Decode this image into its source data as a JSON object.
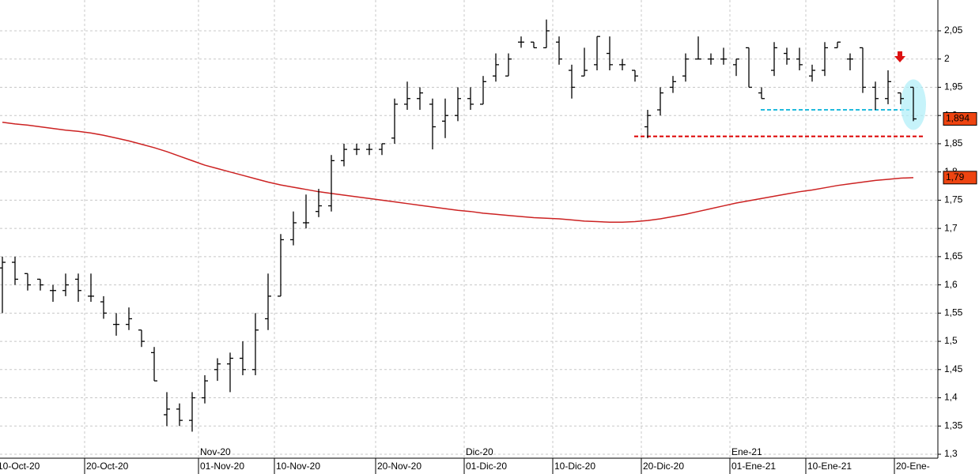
{
  "chart_data": {
    "type": "ohlc",
    "categories": [
      "10-Oct-20",
      null,
      null,
      null,
      null,
      null,
      null,
      "20-Oct-20",
      null,
      null,
      null,
      null,
      null,
      null,
      null,
      null,
      "01-Nov-20",
      null,
      null,
      null,
      null,
      null,
      "10-Nov-20",
      null,
      null,
      null,
      null,
      null,
      null,
      null,
      "20-Nov-20",
      null,
      null,
      null,
      null,
      null,
      null,
      "01-Dic-20",
      null,
      null,
      null,
      null,
      null,
      null,
      "10-Dic-20",
      null,
      null,
      null,
      null,
      null,
      null,
      "20-Dic-20",
      null,
      null,
      null,
      null,
      null,
      null,
      "01-Ene-21",
      null,
      null,
      null,
      null,
      null,
      "10-Ene-21",
      null,
      null,
      null,
      null,
      null,
      null,
      "20-Ene-",
      null
    ],
    "categories_top": [
      null,
      null,
      null,
      null,
      null,
      null,
      null,
      null,
      null,
      null,
      null,
      null,
      null,
      null,
      null,
      null,
      "Nov-20",
      null,
      null,
      null,
      null,
      null,
      null,
      null,
      null,
      null,
      null,
      null,
      null,
      null,
      null,
      null,
      null,
      null,
      null,
      null,
      null,
      "Dic-20",
      null,
      null,
      null,
      null,
      null,
      null,
      null,
      null,
      null,
      null,
      null,
      null,
      null,
      null,
      null,
      null,
      null,
      null,
      null,
      null,
      "Ene-21",
      null,
      null,
      null,
      null,
      null,
      null,
      null,
      null,
      null,
      null,
      null,
      null,
      null,
      null
    ],
    "ohlc": {
      "color": "#000000",
      "open": [
        1.63,
        1.64,
        1.62,
        1.61,
        1.59,
        1.59,
        1.61,
        1.58,
        1.57,
        1.53,
        1.53,
        1.52,
        1.48,
        1.37,
        1.38,
        1.36,
        1.4,
        1.45,
        1.46,
        1.47,
        1.45,
        1.54,
        1.58,
        1.68,
        1.71,
        1.73,
        1.74,
        1.82,
        1.84,
        1.84,
        1.84,
        1.86,
        1.92,
        1.93,
        1.92,
        1.89,
        1.9,
        1.93,
        1.92,
        1.97,
        1.97,
        2.03,
        2.03,
        2.02,
        2.03,
        1.98,
        1.97,
        1.99,
        2.01,
        1.99,
        1.98,
        1.88,
        1.91,
        1.95,
        1.97,
        2.0,
        2.0,
        2.0,
        1.99,
        2.02,
        1.94,
        1.98,
        2.01,
        2.0,
        1.97,
        1.98,
        2.02,
        2.0,
        2.02,
        1.95,
        1.93,
        1.94,
        1.95
      ],
      "high": [
        1.65,
        1.65,
        1.62,
        1.61,
        1.6,
        1.62,
        1.62,
        1.62,
        1.58,
        1.55,
        1.56,
        1.52,
        1.49,
        1.41,
        1.39,
        1.41,
        1.44,
        1.47,
        1.48,
        1.5,
        1.55,
        1.62,
        1.69,
        1.73,
        1.76,
        1.77,
        1.83,
        1.85,
        1.85,
        1.85,
        1.85,
        1.93,
        1.96,
        1.95,
        1.93,
        1.93,
        1.95,
        1.95,
        1.97,
        2.01,
        2.01,
        2.04,
        2.03,
        2.07,
        2.04,
        1.99,
        2.02,
        2.04,
        2.04,
        2.0,
        1.98,
        1.91,
        1.95,
        1.97,
        2.01,
        2.04,
        2.01,
        2.02,
        2.0,
        2.02,
        1.95,
        2.03,
        2.02,
        2.02,
        1.99,
        2.03,
        2.03,
        2.01,
        2.02,
        1.96,
        1.98,
        1.94,
        1.95
      ],
      "low": [
        1.55,
        1.6,
        1.59,
        1.59,
        1.57,
        1.58,
        1.57,
        1.57,
        1.54,
        1.51,
        1.52,
        1.49,
        1.43,
        1.35,
        1.35,
        1.34,
        1.39,
        1.43,
        1.41,
        1.44,
        1.44,
        1.52,
        1.58,
        1.67,
        1.7,
        1.72,
        1.73,
        1.81,
        1.83,
        1.83,
        1.83,
        1.85,
        1.91,
        1.91,
        1.84,
        1.86,
        1.89,
        1.91,
        1.92,
        1.96,
        1.97,
        2.02,
        2.02,
        2.02,
        1.99,
        1.93,
        1.97,
        1.98,
        1.98,
        1.98,
        1.96,
        1.86,
        1.9,
        1.94,
        1.96,
        2.0,
        1.99,
        1.99,
        1.97,
        1.95,
        1.93,
        1.97,
        1.99,
        1.98,
        1.96,
        1.97,
        2.02,
        1.98,
        1.94,
        1.91,
        1.92,
        1.92,
        1.89
      ],
      "close": [
        1.64,
        1.61,
        1.6,
        1.6,
        1.59,
        1.6,
        1.59,
        1.58,
        1.55,
        1.53,
        1.54,
        1.5,
        1.43,
        1.38,
        1.36,
        1.4,
        1.43,
        1.46,
        1.47,
        1.45,
        1.52,
        1.58,
        1.68,
        1.71,
        1.71,
        1.74,
        1.82,
        1.84,
        1.84,
        1.84,
        1.85,
        1.92,
        1.93,
        1.94,
        1.88,
        1.9,
        1.93,
        1.92,
        1.96,
        1.99,
        2.0,
        2.03,
        2.02,
        2.05,
        2.0,
        1.95,
        1.98,
        2.04,
        1.99,
        1.99,
        1.97,
        1.9,
        1.94,
        1.96,
        2.0,
        2.0,
        2.0,
        2.0,
        2.0,
        1.95,
        1.93,
        2.02,
        2.0,
        1.99,
        1.98,
        2.02,
        2.03,
        2.0,
        1.95,
        1.93,
        1.96,
        1.93,
        1.894
      ]
    },
    "moving_average": {
      "color": "#cc2222",
      "values": [
        1.888,
        1.885,
        1.883,
        1.88,
        1.877,
        1.874,
        1.872,
        1.869,
        1.865,
        1.86,
        1.855,
        1.849,
        1.843,
        1.836,
        1.828,
        1.82,
        1.812,
        1.806,
        1.8,
        1.794,
        1.788,
        1.782,
        1.777,
        1.773,
        1.769,
        1.765,
        1.762,
        1.759,
        1.756,
        1.753,
        1.75,
        1.747,
        1.744,
        1.741,
        1.738,
        1.735,
        1.732,
        1.73,
        1.727,
        1.725,
        1.723,
        1.721,
        1.719,
        1.718,
        1.717,
        1.715,
        1.713,
        1.712,
        1.711,
        1.711,
        1.712,
        1.714,
        1.717,
        1.721,
        1.725,
        1.73,
        1.735,
        1.74,
        1.745,
        1.749,
        1.753,
        1.757,
        1.761,
        1.765,
        1.768,
        1.772,
        1.776,
        1.779,
        1.782,
        1.785,
        1.787,
        1.789,
        1.79
      ]
    },
    "levels": [
      {
        "value": 1.863,
        "color": "#dd0000"
      },
      {
        "value": 1.91,
        "color": "#22bbdd"
      }
    ],
    "price_labels": [
      {
        "value": 1.894,
        "label": "1,894",
        "color": "#ee4411"
      },
      {
        "value": 1.79,
        "label": "1,79",
        "color": "#ee4411"
      }
    ],
    "ylim": [
      1.3,
      2.05
    ],
    "yticks": [
      {
        "value": 1.3,
        "label": "1,3"
      },
      {
        "value": 1.35,
        "label": "1,35"
      },
      {
        "value": 1.4,
        "label": "1,4"
      },
      {
        "value": 1.45,
        "label": "1,45"
      },
      {
        "value": 1.5,
        "label": "1,5"
      },
      {
        "value": 1.55,
        "label": "1,55"
      },
      {
        "value": 1.6,
        "label": "1,6"
      },
      {
        "value": 1.65,
        "label": "1,65"
      },
      {
        "value": 1.7,
        "label": "1,7"
      },
      {
        "value": 1.75,
        "label": "1,75"
      },
      {
        "value": 1.8,
        "label": "1,8"
      },
      {
        "value": 1.85,
        "label": "1,85"
      },
      {
        "value": 1.9,
        "label": "1,9"
      },
      {
        "value": 1.95,
        "label": "1,95"
      },
      2,
      {
        "value": 2.05,
        "label": "2,05"
      }
    ],
    "grid": true
  }
}
